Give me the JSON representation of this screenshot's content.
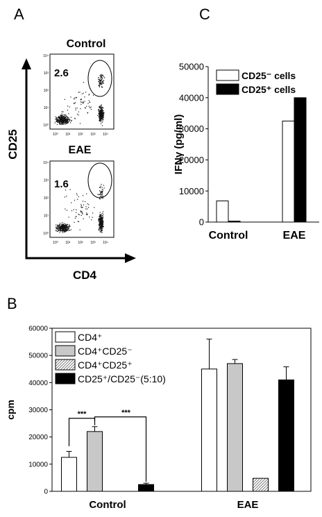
{
  "panels": {
    "a": "A",
    "b": "B",
    "c": "C"
  },
  "flow": {
    "x_axis_label": "CD4",
    "y_axis_label": "CD25",
    "plots": [
      {
        "title": "Control",
        "gate_percent": "2.6"
      },
      {
        "title": "EAE",
        "gate_percent": "1.6"
      }
    ],
    "tick_labels": [
      "10⁰",
      "10¹",
      "10²",
      "10³",
      "10⁴"
    ]
  },
  "chart_data": [
    {
      "type": "bar",
      "panel": "C",
      "ylabel": "IFNγ (pg/ml)",
      "categories": [
        "Control",
        "EAE"
      ],
      "ylim": [
        0,
        50000
      ],
      "yticks": [
        "0",
        "10000",
        "20000",
        "30000",
        "40000",
        "50000"
      ],
      "legend_position": "top-left",
      "series": [
        {
          "name": "CD25⁻ cells",
          "color": "#ffffff",
          "values": [
            6800,
            32500
          ]
        },
        {
          "name": "CD25⁺ cells",
          "color": "#000000",
          "values": [
            300,
            40000
          ]
        }
      ]
    },
    {
      "type": "bar",
      "panel": "B",
      "ylabel": "cpm",
      "categories": [
        "Control",
        "EAE"
      ],
      "ylim": [
        0,
        60000
      ],
      "yticks": [
        "0",
        "10000",
        "20000",
        "30000",
        "40000",
        "50000",
        "60000"
      ],
      "legend_position": "top-left",
      "series": [
        {
          "name": "CD4⁺",
          "color": "#ffffff",
          "values": [
            12500,
            45000
          ],
          "errors": [
            2200,
            11000
          ]
        },
        {
          "name": "CD4⁺CD25⁻",
          "color": "#c8c8c8",
          "values": [
            22000,
            47000
          ],
          "errors": [
            1800,
            1500
          ]
        },
        {
          "name": "CD4⁺CD25⁺",
          "color": "hatched",
          "values": [
            0,
            4800
          ],
          "errors": [
            0,
            0
          ]
        },
        {
          "name": "CD25⁺/CD25⁻(5:10)",
          "color": "#000000",
          "values": [
            2500,
            41000
          ],
          "errors": [
            500,
            4800
          ]
        }
      ],
      "significance": [
        "***",
        "***"
      ]
    }
  ]
}
